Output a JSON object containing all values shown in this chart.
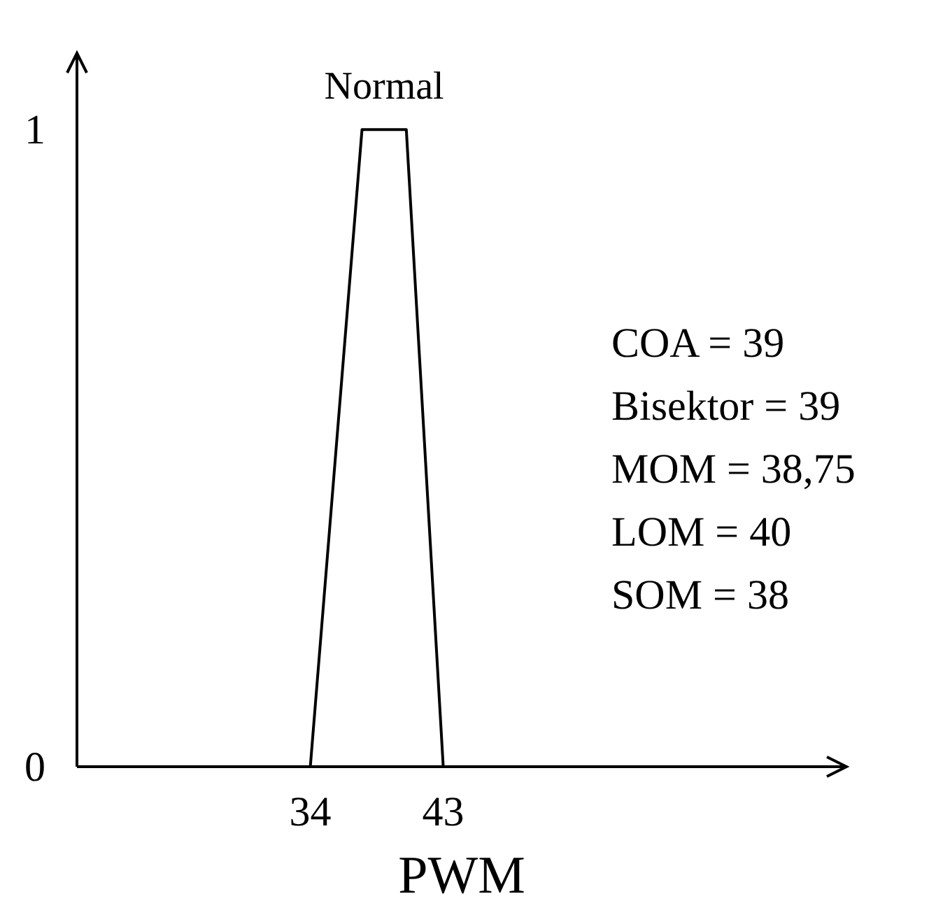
{
  "chart_data": {
    "type": "line",
    "xlabel": "PWM",
    "x": [
      34,
      37.5,
      40.5,
      43
    ],
    "series": [
      {
        "name": "Normal",
        "color": "#000000",
        "values": [
          0,
          1,
          1,
          0
        ]
      }
    ],
    "xlim": [
      18.2,
      70.3
    ],
    "ylim": [
      0,
      1.12
    ],
    "xticks": [
      34,
      43
    ],
    "yticks": [
      0,
      1
    ],
    "grid": false,
    "marker": "none",
    "line_style": "solid",
    "annotations": [
      "COA = 39",
      "Bisektor = 39",
      "MOM = 38,75",
      "LOM = 40",
      "SOM = 38"
    ]
  }
}
